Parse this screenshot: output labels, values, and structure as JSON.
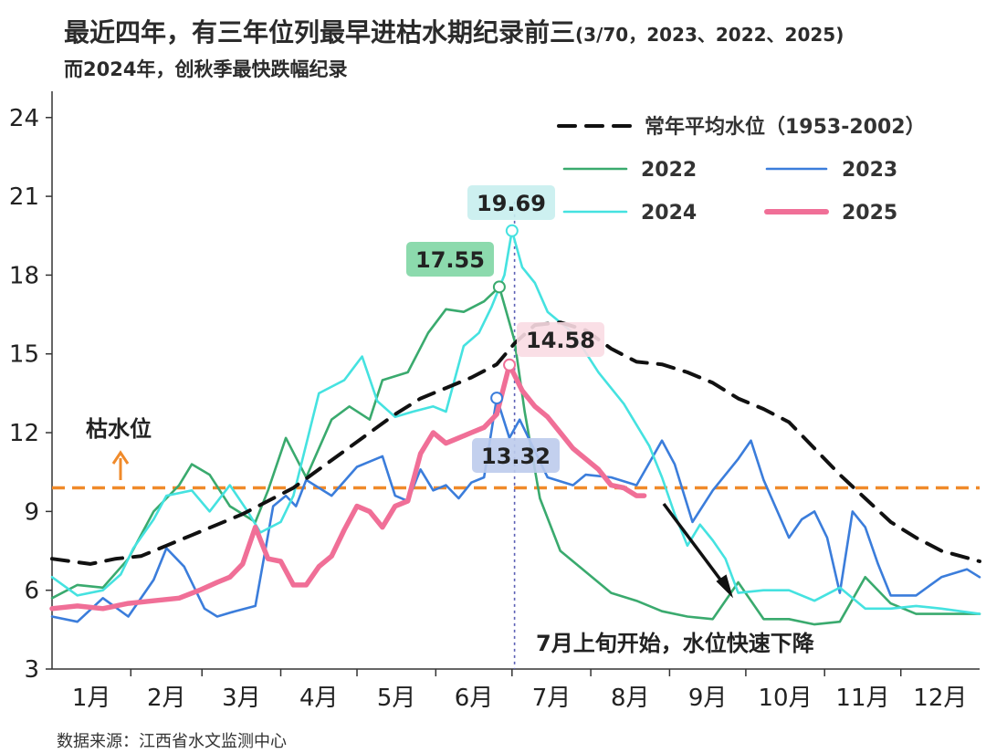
{
  "header": {
    "title": "最近四年，有三年位列最早进枯水期纪录前三",
    "title_suffix": "(3/70，2023、2022、2025)",
    "subtitle": "而2024年，创秋季最快跌幅纪录"
  },
  "source": "数据来源：江西省水文监测中心",
  "chart_data": {
    "type": "line",
    "title": "最近四年，有三年位列最早进枯水期纪录前三(3/70，2023、2022、2025)",
    "subtitle": "而2024年，创秋季最快跌幅纪录",
    "xlabel": "",
    "ylabel": "",
    "x_categories": [
      "1月",
      "2月",
      "3月",
      "4月",
      "5月",
      "6月",
      "7月",
      "8月",
      "9月",
      "10月",
      "11月",
      "12月"
    ],
    "x_range_days": [
      0,
      365
    ],
    "ylim": [
      3,
      25
    ],
    "yticks": [
      3,
      6,
      9,
      12,
      15,
      18,
      21,
      24
    ],
    "legend_position": "top-right",
    "colors": {
      "avg": "#111111",
      "2022": "#3aaa6e",
      "2023": "#3b7ddb",
      "2024": "#45e2e0",
      "2025": "#f06f97",
      "dry_line": "#f08a2a"
    },
    "series": [
      {
        "name": "常年平均水位（1953-2002）",
        "key": "avg",
        "style": "dashed",
        "x": [
          0,
          15,
          25,
          35,
          45,
          55,
          65,
          75,
          85,
          95,
          105,
          115,
          125,
          135,
          145,
          155,
          165,
          175,
          182,
          190,
          200,
          210,
          220,
          230,
          240,
          250,
          260,
          270,
          280,
          290,
          300,
          310,
          320,
          330,
          340,
          350,
          365
        ],
        "y": [
          7.2,
          7.0,
          7.2,
          7.3,
          7.7,
          8.1,
          8.5,
          8.9,
          9.4,
          9.9,
          10.6,
          11.3,
          12.0,
          12.7,
          13.3,
          13.7,
          14.1,
          14.6,
          15.4,
          16.1,
          16.2,
          15.9,
          15.2,
          14.7,
          14.6,
          14.3,
          13.9,
          13.3,
          12.9,
          12.4,
          11.4,
          10.4,
          9.5,
          8.6,
          8.0,
          7.5,
          7.1
        ]
      },
      {
        "name": "2022",
        "key": "2022",
        "style": "solid",
        "x": [
          0,
          10,
          20,
          30,
          40,
          50,
          55,
          62,
          70,
          80,
          85,
          92,
          100,
          110,
          117,
          125,
          130,
          140,
          148,
          155,
          162,
          170,
          176,
          182,
          186,
          192,
          200,
          210,
          220,
          230,
          240,
          250,
          260,
          270,
          280,
          290,
          300,
          310,
          320,
          330,
          340,
          350,
          365
        ],
        "y": [
          5.7,
          6.2,
          6.1,
          7.2,
          9.0,
          10.0,
          10.8,
          10.4,
          9.2,
          8.6,
          9.8,
          11.8,
          10.3,
          12.5,
          13.0,
          12.5,
          14.0,
          14.3,
          15.8,
          16.7,
          16.6,
          17.0,
          17.55,
          15.5,
          12.8,
          9.5,
          7.5,
          6.7,
          5.9,
          5.6,
          5.2,
          5.0,
          4.9,
          6.3,
          4.9,
          4.9,
          4.7,
          4.8,
          6.5,
          5.5,
          5.1,
          5.1,
          5.1
        ]
      },
      {
        "name": "2023",
        "key": "2023",
        "style": "solid",
        "x": [
          0,
          10,
          20,
          30,
          40,
          45,
          52,
          60,
          65,
          72,
          80,
          87,
          92,
          96,
          100,
          110,
          120,
          130,
          135,
          140,
          145,
          150,
          155,
          160,
          165,
          170,
          175,
          180,
          184,
          188,
          195,
          205,
          210,
          220,
          230,
          240,
          245,
          252,
          260,
          270,
          275,
          280,
          290,
          295,
          300,
          305,
          310,
          315,
          320,
          325,
          330,
          340,
          350,
          360,
          365
        ],
        "y": [
          5.0,
          4.8,
          5.7,
          5.0,
          6.4,
          7.6,
          6.9,
          5.3,
          5.0,
          5.2,
          5.4,
          9.2,
          9.6,
          9.2,
          10.2,
          9.6,
          10.7,
          11.1,
          9.6,
          9.4,
          10.6,
          9.8,
          10.0,
          9.5,
          10.1,
          10.3,
          13.32,
          11.8,
          12.5,
          11.7,
          10.3,
          10.0,
          10.4,
          10.3,
          10.0,
          11.7,
          10.8,
          8.6,
          9.8,
          11.0,
          11.7,
          10.2,
          8.0,
          8.7,
          9.0,
          8.0,
          5.9,
          9.0,
          8.4,
          7.0,
          5.8,
          5.8,
          6.5,
          6.8,
          6.5
        ]
      },
      {
        "name": "2024",
        "key": "2024",
        "style": "solid",
        "x": [
          0,
          10,
          20,
          27,
          32,
          40,
          45,
          55,
          62,
          70,
          77,
          82,
          90,
          95,
          105,
          115,
          122,
          128,
          135,
          142,
          150,
          155,
          162,
          168,
          173,
          178,
          181,
          185,
          190,
          195,
          205,
          215,
          225,
          235,
          240,
          245,
          250,
          255,
          260,
          265,
          270,
          280,
          290,
          300,
          310,
          320,
          330,
          340,
          350,
          365
        ],
        "y": [
          6.5,
          5.8,
          6.0,
          6.6,
          7.6,
          8.7,
          9.6,
          9.8,
          9.0,
          10.0,
          9.0,
          8.2,
          8.6,
          9.6,
          13.5,
          14.0,
          14.9,
          13.2,
          12.6,
          12.8,
          13.0,
          12.8,
          15.3,
          15.8,
          16.8,
          18.0,
          19.69,
          18.3,
          17.7,
          16.6,
          15.8,
          14.3,
          13.1,
          11.5,
          10.3,
          8.9,
          7.7,
          8.5,
          7.9,
          7.2,
          5.9,
          6.0,
          6.0,
          5.6,
          6.1,
          5.3,
          5.3,
          5.4,
          5.3,
          5.1
        ]
      },
      {
        "name": "2025",
        "key": "2025",
        "style": "solid",
        "x": [
          0,
          10,
          20,
          30,
          40,
          50,
          58,
          65,
          70,
          75,
          80,
          85,
          90,
          95,
          100,
          105,
          110,
          115,
          120,
          125,
          130,
          135,
          140,
          145,
          150,
          155,
          160,
          165,
          170,
          175,
          180,
          185,
          190,
          195,
          200,
          205,
          210,
          215,
          220,
          225,
          230,
          233
        ],
        "y": [
          5.3,
          5.4,
          5.3,
          5.5,
          5.6,
          5.7,
          6.0,
          6.3,
          6.5,
          7.0,
          8.4,
          7.2,
          7.1,
          6.2,
          6.2,
          6.9,
          7.3,
          8.3,
          9.2,
          9.0,
          8.4,
          9.2,
          9.4,
          11.2,
          12.0,
          11.6,
          11.8,
          12.0,
          12.2,
          12.7,
          14.58,
          13.6,
          13.0,
          12.6,
          12.0,
          11.4,
          11.0,
          10.6,
          10.0,
          9.9,
          9.6,
          9.6
        ]
      }
    ],
    "annotations": [
      {
        "text": "19.69",
        "series": "2024",
        "x": 181,
        "y": 19.69
      },
      {
        "text": "17.55",
        "series": "2022",
        "x": 176,
        "y": 17.55
      },
      {
        "text": "14.58",
        "series": "2025",
        "x": 180,
        "y": 14.58
      },
      {
        "text": "13.32",
        "series": "2023",
        "x": 175,
        "y": 13.32
      },
      {
        "text": "枯水位",
        "note": "horizontal orange dashed line",
        "y": 9.9
      },
      {
        "text": "7月上旬开始，水位快速下降"
      }
    ],
    "reference_lines": [
      {
        "type": "horizontal",
        "y": 9.9,
        "label": "枯水位",
        "color": "#f08a2a",
        "style": "dashed"
      },
      {
        "type": "vertical",
        "x": 182,
        "color": "#5b5fb5",
        "style": "dotted"
      }
    ]
  }
}
